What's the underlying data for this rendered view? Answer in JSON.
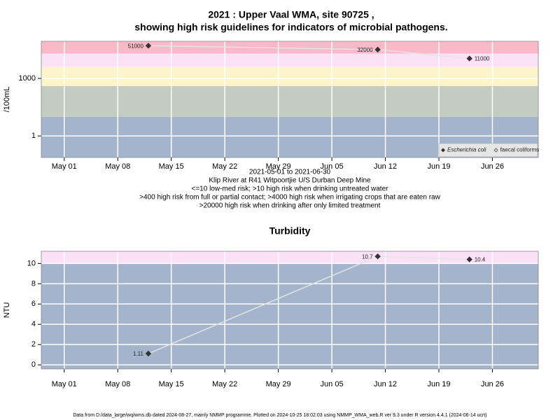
{
  "chart_data": [
    {
      "type": "line",
      "title": "2021 : Upper Vaal WMA, site 90725 ,",
      "subtitle": "showing high risk guidelines for indicators of microbial pathogens.",
      "y_label": "/100mL",
      "x_label": "2021-05-01 to 2021-06-30",
      "notes": [
        "Klip River at R41 Witpoortjie U/S Durban Deep Mine",
        "<=10 low-med risk; >10 high risk when drinking untreated water",
        ">400 high risk from full or partial contact; >4000 high risk when irrigating crops that are eaten raw",
        ">20000 high risk when drinking after only limited treatment"
      ],
      "x": [
        "2021-05-12",
        "2021-06-11",
        "2021-06-23"
      ],
      "series": [
        {
          "name": "Escherichia coli",
          "color": "#333333",
          "marker": "filled-diamond",
          "values": [
            51000,
            32000,
            11000
          ]
        },
        {
          "name": "faecal coliforms",
          "color": "#333333",
          "marker": "open-diamond",
          "values": [
            null,
            null,
            null
          ]
        }
      ],
      "log_scale": true,
      "ylim": [
        0.075,
        87000
      ],
      "yticks": [
        1,
        1000
      ],
      "xlim": [
        "2021-04-28",
        "2021-07-02"
      ],
      "xticks": [
        {
          "value": "2021-05-01",
          "label": "May 01"
        },
        {
          "value": "2021-05-08",
          "label": "May 08"
        },
        {
          "value": "2021-05-15",
          "label": "May 15"
        },
        {
          "value": "2021-05-22",
          "label": "May 22"
        },
        {
          "value": "2021-05-29",
          "label": "May 29"
        },
        {
          "value": "2021-06-05",
          "label": "Jun 05"
        },
        {
          "value": "2021-06-12",
          "label": "Jun 12"
        },
        {
          "value": "2021-06-19",
          "label": "Jun 19"
        },
        {
          "value": "2021-06-26",
          "label": "Jun 26"
        }
      ],
      "band_breaks": [
        10,
        400,
        4000,
        20000
      ],
      "band_colors": [
        "#a3b4cc",
        "#c4cbc2",
        "#fcf5c9",
        "#fbe1f6",
        "#f9b9c9"
      ],
      "grid": true,
      "legend": "bottom-right"
    },
    {
      "type": "line",
      "title": "Turbidity",
      "y_label": "NTU",
      "x": [
        "2021-05-12",
        "2021-06-11",
        "2021-06-23"
      ],
      "series": [
        {
          "name": "Turbidity",
          "color": "#333333",
          "marker": "filled-diamond",
          "values": [
            1.11,
            10.7,
            10.4
          ]
        }
      ],
      "log_scale": false,
      "ylim": [
        -0.4,
        11.2
      ],
      "yticks": [
        0,
        2,
        4,
        6,
        8,
        10
      ],
      "xlim": [
        "2021-04-28",
        "2021-07-02"
      ],
      "xticks": [
        {
          "value": "2021-05-01",
          "label": "May 01"
        },
        {
          "value": "2021-05-08",
          "label": "May 08"
        },
        {
          "value": "2021-05-15",
          "label": "May 15"
        },
        {
          "value": "2021-05-22",
          "label": "May 22"
        },
        {
          "value": "2021-05-29",
          "label": "May 29"
        },
        {
          "value": "2021-06-05",
          "label": "Jun 05"
        },
        {
          "value": "2021-06-12",
          "label": "Jun 12"
        },
        {
          "value": "2021-06-19",
          "label": "Jun 19"
        },
        {
          "value": "2021-06-26",
          "label": "Jun 26"
        }
      ],
      "band_breaks": [
        10
      ],
      "band_colors": [
        "#a3b4cc",
        "#fbe1f6"
      ],
      "grid": true
    }
  ],
  "footer": "Data from D:/data_large/wq/wms.db dated 2024-08-27, mainly NMMP programme. Plotted on 2024-10-25 18:02:03 using NMMP_WMA_web.R ver 9.3 under R version 4.4.1 (2024-06-14 ucrt)"
}
